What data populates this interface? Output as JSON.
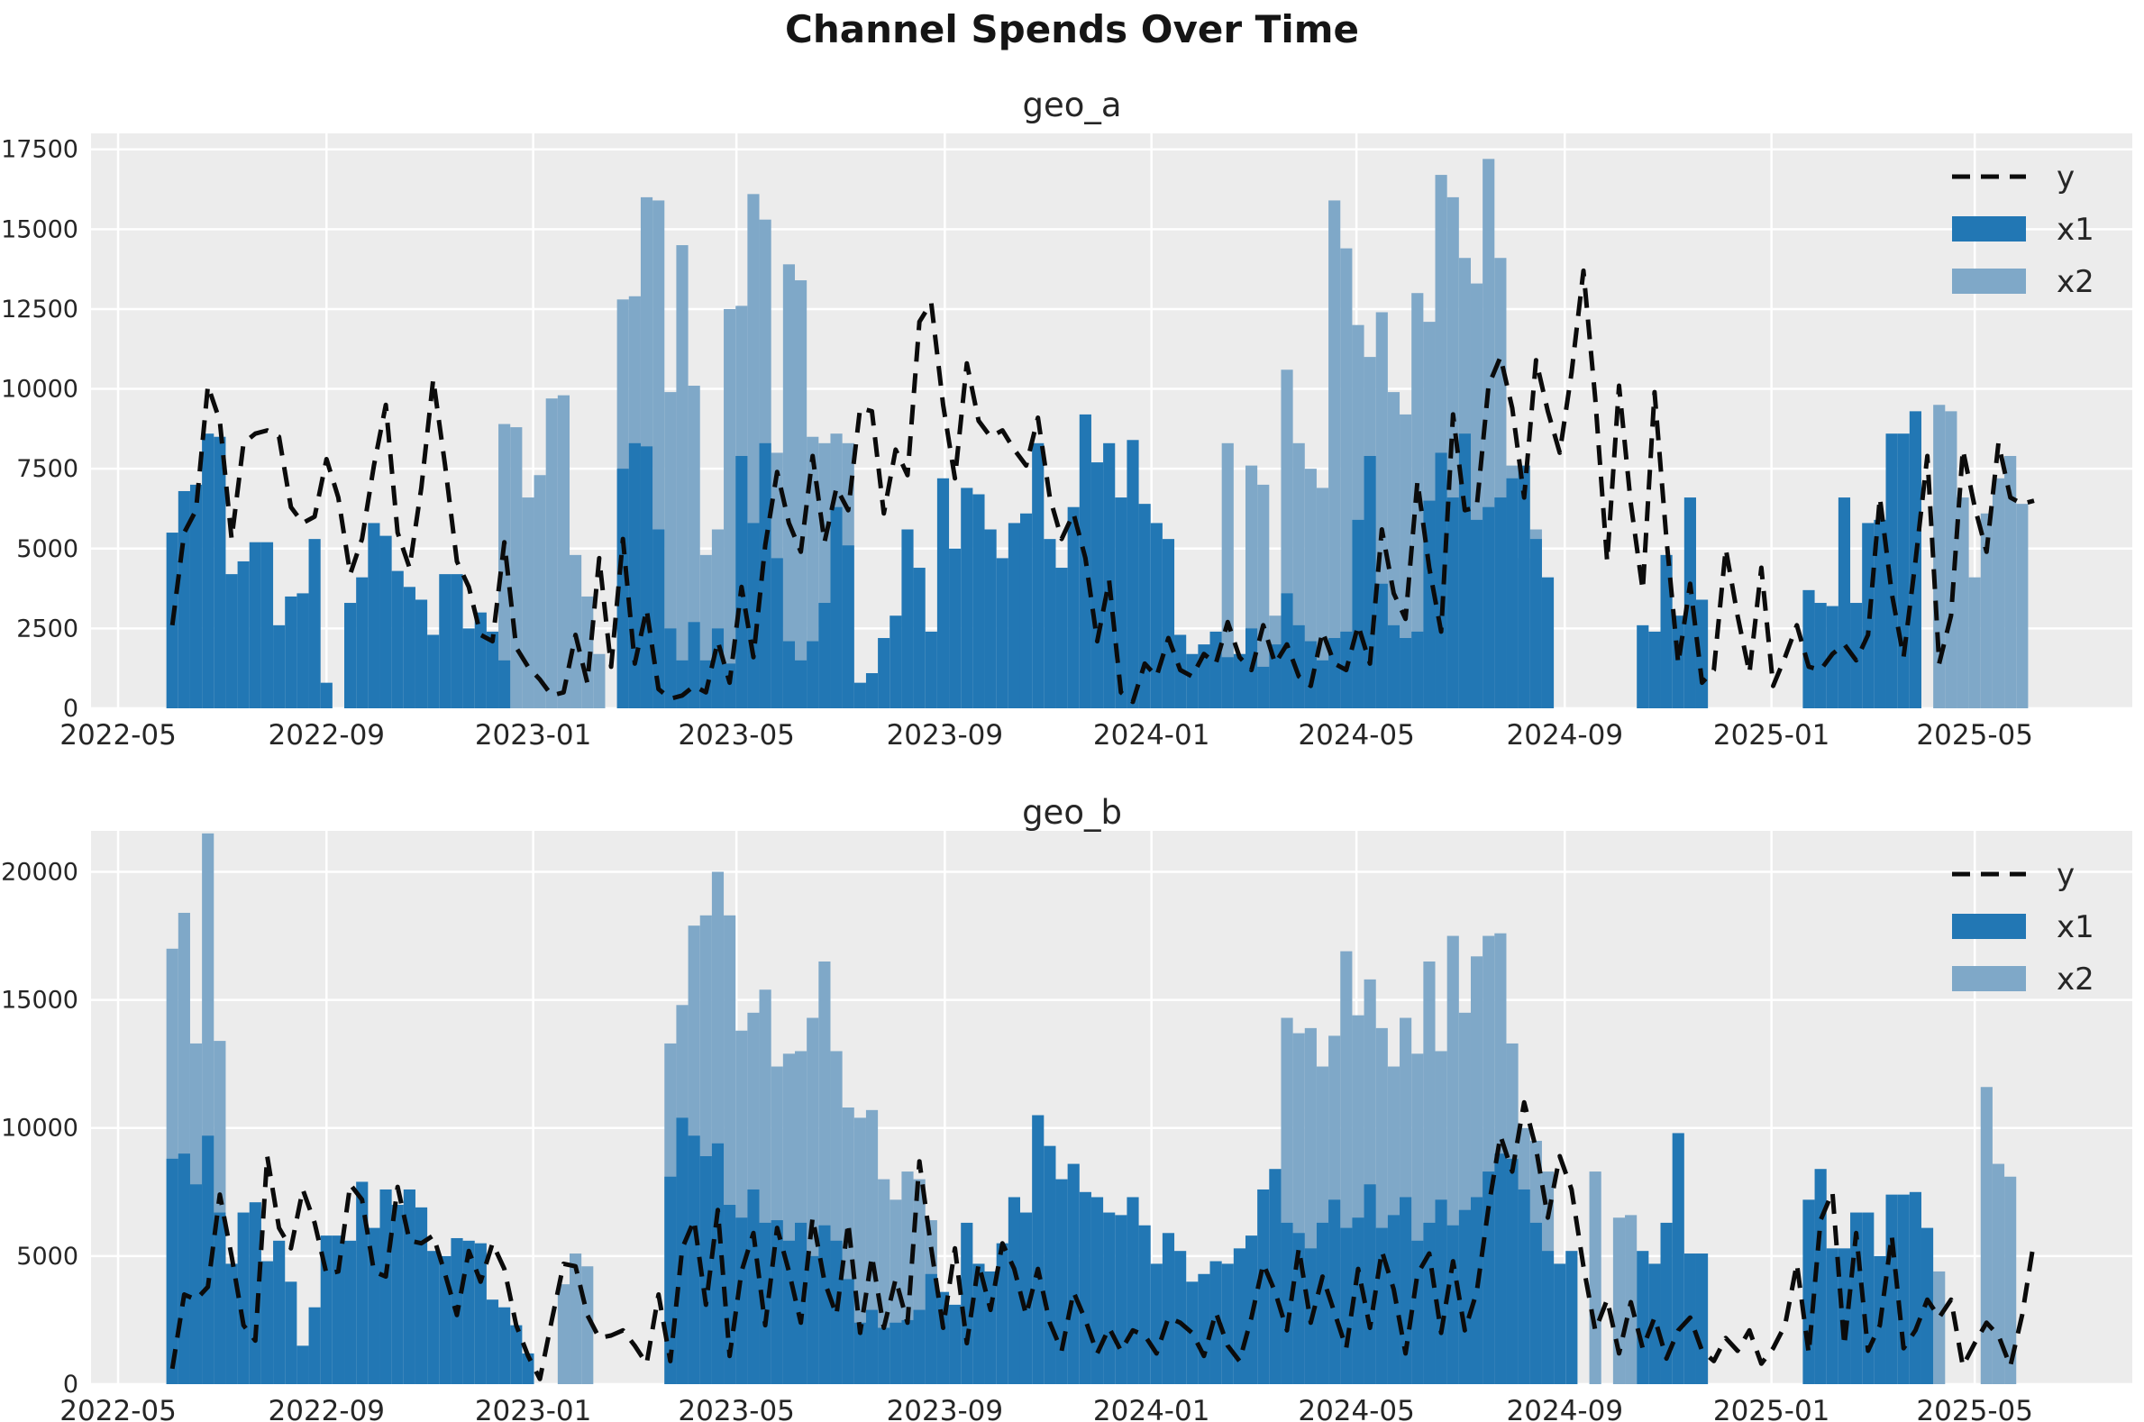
{
  "title": "Channel Spends Over Time",
  "chart_data": {
    "type": "bar",
    "note": "two stacked subplots, weekly bars x1 (dark) and x2 (light) with dashed line y",
    "colors": {
      "x1": "#2277b4",
      "x2": "#7fa8c8",
      "y_line": "#0b0b0b",
      "plot_bg": "#ececec",
      "grid": "#ffffff",
      "tick_text": "#262626"
    },
    "legend": {
      "position": "upper right",
      "entries": [
        {
          "label": "y",
          "type": "dashed-line"
        },
        {
          "label": "x1",
          "type": "swatch-dark"
        },
        {
          "label": "x2",
          "type": "swatch-light"
        }
      ]
    },
    "x_axis": {
      "min_date": "2022-04-15",
      "max_date": "2025-08-02",
      "series_start_date": "2022-06-02",
      "step_days": 7,
      "n_points": 160,
      "ticks": [
        {
          "label": "2022-05",
          "date": "2022-05-01"
        },
        {
          "label": "2022-09",
          "date": "2022-09-01"
        },
        {
          "label": "2023-01",
          "date": "2023-01-01"
        },
        {
          "label": "2023-05",
          "date": "2023-05-01"
        },
        {
          "label": "2023-09",
          "date": "2023-09-01"
        },
        {
          "label": "2024-01",
          "date": "2024-01-01"
        },
        {
          "label": "2024-05",
          "date": "2024-05-01"
        },
        {
          "label": "2024-09",
          "date": "2024-09-01"
        },
        {
          "label": "2025-01",
          "date": "2025-01-01"
        },
        {
          "label": "2025-05",
          "date": "2025-05-01"
        }
      ]
    },
    "panels": [
      {
        "title": "geo_a",
        "ylim": [
          0,
          18000
        ],
        "y_ticks": [
          0,
          2500,
          5000,
          7500,
          10000,
          12500,
          15000,
          17500
        ],
        "series": {
          "x1": [
            5500,
            6800,
            7000,
            8600,
            8500,
            4200,
            4600,
            5200,
            5200,
            2600,
            3500,
            3600,
            5300,
            800,
            0,
            3300,
            4100,
            5800,
            5400,
            4300,
            3800,
            3400,
            2300,
            4200,
            4200,
            2500,
            3000,
            2400,
            1500,
            0,
            0,
            0,
            0,
            0,
            0,
            0,
            0,
            0,
            7500,
            8300,
            8200,
            5600,
            2500,
            1500,
            2700,
            1500,
            2500,
            1400,
            7900,
            5800,
            8300,
            4700,
            2100,
            1500,
            2100,
            3300,
            6300,
            5100,
            800,
            1100,
            2200,
            2900,
            5600,
            4400,
            2400,
            7200,
            5000,
            6900,
            6700,
            5600,
            4700,
            5800,
            6100,
            8300,
            5300,
            4400,
            6300,
            9200,
            7700,
            8300,
            6600,
            8400,
            6400,
            5800,
            5300,
            2300,
            1700,
            2000,
            2400,
            1600,
            1700,
            2500,
            1300,
            2000,
            3600,
            2600,
            2100,
            1500,
            2200,
            2400,
            5900,
            7900,
            3900,
            2600,
            2200,
            2400,
            6500,
            8000,
            6600,
            8600,
            5900,
            6300,
            6600,
            7200,
            7600,
            5300,
            4100,
            0,
            0,
            0,
            0,
            0,
            0,
            0,
            2600,
            2400,
            4800,
            2900,
            6600,
            3400,
            0,
            0,
            0,
            0,
            0,
            0,
            0,
            0,
            3700,
            3300,
            3200,
            6600,
            3300,
            5800,
            5900,
            8600,
            8600,
            9300,
            0,
            0,
            0,
            0,
            0,
            0,
            0,
            0,
            0,
            0,
            0,
            0
          ],
          "x2": [
            0,
            0,
            0,
            0,
            0,
            0,
            0,
            0,
            0,
            0,
            0,
            0,
            0,
            0,
            0,
            0,
            0,
            0,
            0,
            0,
            0,
            0,
            0,
            0,
            0,
            0,
            0,
            0,
            8900,
            8800,
            6600,
            7300,
            9700,
            9800,
            4800,
            3500,
            1700,
            0,
            12800,
            12900,
            16000,
            15900,
            9900,
            14500,
            10100,
            4800,
            5600,
            12500,
            12600,
            16100,
            15300,
            8000,
            13900,
            13400,
            8500,
            8300,
            8600,
            8300,
            0,
            0,
            0,
            0,
            0,
            0,
            0,
            0,
            0,
            0,
            0,
            0,
            0,
            0,
            0,
            0,
            0,
            0,
            0,
            0,
            0,
            0,
            0,
            0,
            0,
            0,
            0,
            0,
            0,
            0,
            0,
            8300,
            0,
            7600,
            7000,
            2900,
            10600,
            8300,
            7500,
            6900,
            15900,
            14400,
            12000,
            11000,
            12400,
            9900,
            9200,
            13000,
            12100,
            16700,
            16000,
            14100,
            13300,
            17200,
            14100,
            7600,
            4700,
            5600,
            0,
            0,
            0,
            0,
            0,
            0,
            0,
            0,
            0,
            0,
            0,
            0,
            0,
            0,
            0,
            0,
            0,
            0,
            0,
            0,
            0,
            0,
            0,
            0,
            0,
            0,
            0,
            0,
            0,
            0,
            0,
            0,
            0,
            9500,
            9300,
            6600,
            4100,
            6100,
            7200,
            7900,
            6400,
            0,
            0,
            0
          ],
          "y": [
            2600,
            5500,
            6200,
            10100,
            9000,
            5300,
            8300,
            8600,
            8700,
            8500,
            6300,
            5800,
            6000,
            7800,
            6600,
            4200,
            5300,
            7600,
            9500,
            5500,
            4400,
            6900,
            10300,
            7600,
            4600,
            3800,
            2300,
            2100,
            5200,
            1900,
            1300,
            900,
            400,
            500,
            2300,
            800,
            4700,
            1300,
            5300,
            1400,
            3100,
            600,
            300,
            400,
            700,
            500,
            2100,
            800,
            3800,
            1600,
            5100,
            7400,
            5800,
            4900,
            7900,
            5200,
            6900,
            6200,
            9400,
            9300,
            6100,
            8100,
            7300,
            12100,
            12700,
            9500,
            7200,
            10800,
            9000,
            8500,
            8700,
            8100,
            7600,
            9100,
            6600,
            5300,
            6100,
            4700,
            2100,
            4000,
            500,
            200,
            1400,
            1000,
            2200,
            1200,
            1000,
            1700,
            1400,
            2700,
            1600,
            1200,
            2600,
            1400,
            2000,
            1000,
            700,
            2400,
            1400,
            1200,
            2600,
            1400,
            5600,
            3600,
            2800,
            7100,
            4400,
            2400,
            9200,
            6200,
            6300,
            10100,
            11000,
            9400,
            6600,
            10900,
            9300,
            8000,
            10500,
            13700,
            9700,
            4600,
            10100,
            6400,
            3700,
            9900,
            5300,
            1400,
            3900,
            800,
            1200,
            5000,
            2900,
            1100,
            4400,
            700,
            1600,
            2600,
            1300,
            1200,
            1700,
            2000,
            1500,
            2300,
            6600,
            3600,
            1600,
            4600,
            7900,
            1400,
            2900,
            8100,
            6300,
            4900,
            8300,
            6600,
            6400,
            6500,
            null,
            null
          ]
        }
      },
      {
        "title": "geo_b",
        "ylim": [
          0,
          21600
        ],
        "y_ticks": [
          0,
          5000,
          10000,
          15000,
          20000
        ],
        "series": {
          "x1": [
            8800,
            9000,
            7800,
            9700,
            6700,
            4700,
            6700,
            7100,
            4800,
            5600,
            4000,
            1500,
            3000,
            5800,
            5800,
            5600,
            7900,
            6100,
            7600,
            7000,
            7600,
            6900,
            5200,
            5000,
            5700,
            5600,
            5500,
            3300,
            3000,
            2300,
            1200,
            0,
            0,
            0,
            0,
            0,
            0,
            0,
            0,
            0,
            0,
            0,
            8100,
            10400,
            9700,
            8900,
            9400,
            7000,
            6500,
            7600,
            6300,
            6400,
            5600,
            6300,
            5000,
            6200,
            5600,
            4100,
            2400,
            2900,
            2200,
            2400,
            2500,
            2900,
            4300,
            3600,
            3100,
            6300,
            4700,
            4400,
            5500,
            7300,
            6700,
            10500,
            9300,
            8000,
            8600,
            7500,
            7300,
            6700,
            6600,
            7300,
            6200,
            4700,
            5900,
            5200,
            4000,
            4300,
            4800,
            4700,
            5300,
            5800,
            7600,
            8400,
            6300,
            5900,
            5300,
            6300,
            7200,
            6100,
            6500,
            7800,
            6100,
            6600,
            7300,
            5600,
            6300,
            7200,
            6200,
            6800,
            7300,
            8300,
            9000,
            8800,
            7600,
            6300,
            5200,
            4700,
            5200,
            0,
            0,
            0,
            0,
            0,
            5200,
            4700,
            6300,
            9800,
            5100,
            5100,
            0,
            0,
            0,
            0,
            0,
            0,
            0,
            0,
            7200,
            8400,
            5300,
            5300,
            6700,
            6700,
            5000,
            7400,
            7400,
            7500,
            6100,
            0,
            0,
            0,
            0,
            0,
            0,
            0,
            0,
            0,
            0,
            0
          ],
          "x2": [
            17000,
            18400,
            13300,
            21500,
            13400,
            0,
            0,
            0,
            0,
            0,
            0,
            0,
            0,
            0,
            0,
            0,
            0,
            0,
            0,
            0,
            0,
            0,
            0,
            0,
            0,
            0,
            0,
            0,
            0,
            0,
            0,
            0,
            0,
            3900,
            5100,
            4600,
            0,
            0,
            0,
            0,
            0,
            0,
            13300,
            14800,
            17900,
            18300,
            20000,
            18300,
            13800,
            14500,
            15400,
            12400,
            12900,
            13000,
            14300,
            16500,
            13000,
            10800,
            10400,
            10700,
            8000,
            7200,
            8300,
            8000,
            6400,
            0,
            0,
            0,
            0,
            0,
            0,
            0,
            0,
            0,
            0,
            0,
            0,
            0,
            0,
            0,
            0,
            0,
            0,
            0,
            0,
            0,
            0,
            0,
            0,
            0,
            0,
            0,
            0,
            0,
            14300,
            13700,
            13900,
            12400,
            13600,
            16900,
            14400,
            15800,
            13900,
            12400,
            14300,
            12900,
            16500,
            13000,
            17500,
            14500,
            16700,
            17500,
            17600,
            13300,
            10000,
            9500,
            8300,
            0,
            0,
            0,
            8300,
            0,
            6500,
            6600,
            0,
            0,
            0,
            0,
            0,
            0,
            0,
            0,
            0,
            0,
            0,
            0,
            0,
            0,
            0,
            0,
            0,
            0,
            0,
            0,
            0,
            0,
            0,
            0,
            0,
            4400,
            0,
            0,
            0,
            11600,
            8600,
            8100,
            0,
            0,
            0,
            0
          ],
          "y": [
            600,
            3500,
            3300,
            3800,
            7400,
            5000,
            2300,
            1700,
            8900,
            6100,
            5300,
            7600,
            6300,
            4300,
            4400,
            7800,
            7200,
            4400,
            4200,
            7700,
            5600,
            5500,
            5800,
            4300,
            2700,
            5200,
            4000,
            5500,
            4500,
            2300,
            1100,
            200,
            2500,
            4700,
            4600,
            2700,
            1800,
            1900,
            2100,
            1500,
            800,
            3500,
            900,
            5300,
            6400,
            3100,
            6800,
            1100,
            4400,
            5900,
            2300,
            6100,
            4400,
            2400,
            6500,
            4000,
            2700,
            6300,
            2000,
            5000,
            2200,
            4100,
            2400,
            8700,
            5300,
            2200,
            5300,
            1600,
            4700,
            2900,
            5500,
            4500,
            2700,
            4500,
            2400,
            1300,
            3600,
            2500,
            1200,
            2200,
            1300,
            2100,
            1900,
            1200,
            2600,
            2400,
            2000,
            1100,
            2800,
            1500,
            900,
            2600,
            4700,
            3600,
            2100,
            5300,
            2400,
            4200,
            2800,
            1400,
            4500,
            2200,
            5200,
            3700,
            1200,
            4300,
            5100,
            2000,
            4800,
            2100,
            3600,
            6900,
            9700,
            8300,
            11000,
            9200,
            6500,
            8900,
            7600,
            4600,
            2100,
            3300,
            1200,
            3200,
            1400,
            2600,
            1000,
            2100,
            2600,
            1300,
            900,
            1800,
            1300,
            2100,
            800,
            1400,
            2300,
            4700,
            1200,
            6400,
            7500,
            1500,
            5900,
            1300,
            2300,
            5800,
            1400,
            2100,
            3300,
            2600,
            3300,
            700,
            1600,
            2400,
            1900,
            700,
            2700,
            5600,
            null,
            null
          ]
        }
      }
    ]
  }
}
